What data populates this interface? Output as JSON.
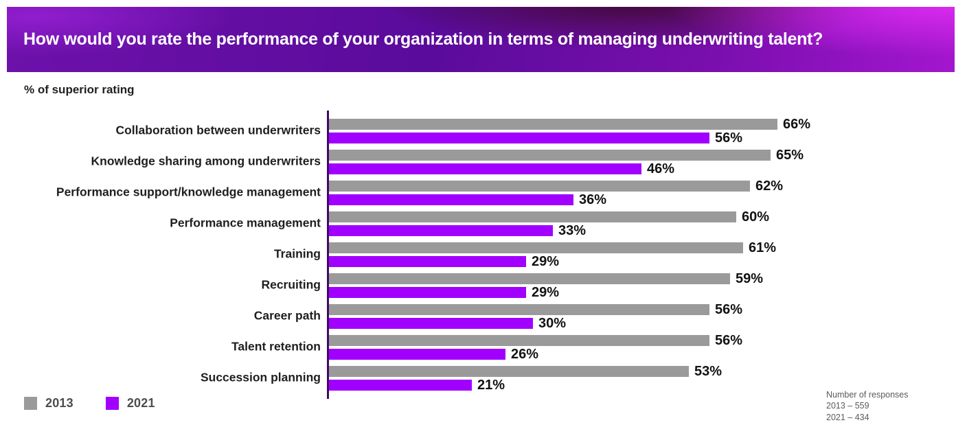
{
  "header": {
    "title": "How would you rate the performance of your organization in terms of managing underwriting talent?"
  },
  "subtitle": "% of superior rating",
  "chart_data": {
    "type": "bar",
    "orientation": "horizontal",
    "title": "How would you rate the performance of your organization in terms of managing underwriting talent?",
    "xlabel": "% of superior rating",
    "ylabel": "",
    "xlim": [
      0,
      70
    ],
    "grid": false,
    "legend_position": "bottom-left",
    "value_suffix": "%",
    "categories": [
      "Collaboration between underwriters",
      "Knowledge sharing among underwriters",
      "Performance support/knowledge management",
      "Performance management",
      "Training",
      "Recruiting",
      "Career path",
      "Talent retention",
      "Succession planning"
    ],
    "series": [
      {
        "name": "2013",
        "color": "#9a9a9a",
        "values": [
          66,
          65,
          62,
          60,
          61,
          59,
          56,
          56,
          53
        ]
      },
      {
        "name": "2021",
        "color": "#a100ff",
        "values": [
          56,
          46,
          36,
          33,
          29,
          29,
          30,
          26,
          21
        ]
      }
    ]
  },
  "footnote": {
    "lines": [
      "Number of responses",
      "2013 – 559",
      "2021 – 434"
    ]
  },
  "colors": {
    "banner_purple": "#6d11ab",
    "banner_magenta": "#d82aee",
    "banner_maroon": "#3a0926",
    "axis": "#3d0a63",
    "bar_2013": "#9a9a9a",
    "bar_2021": "#a100ff",
    "text_dark": "#1f1f1f",
    "legend_text": "#4d4d4d",
    "footnote_text": "#5a5a5a"
  }
}
